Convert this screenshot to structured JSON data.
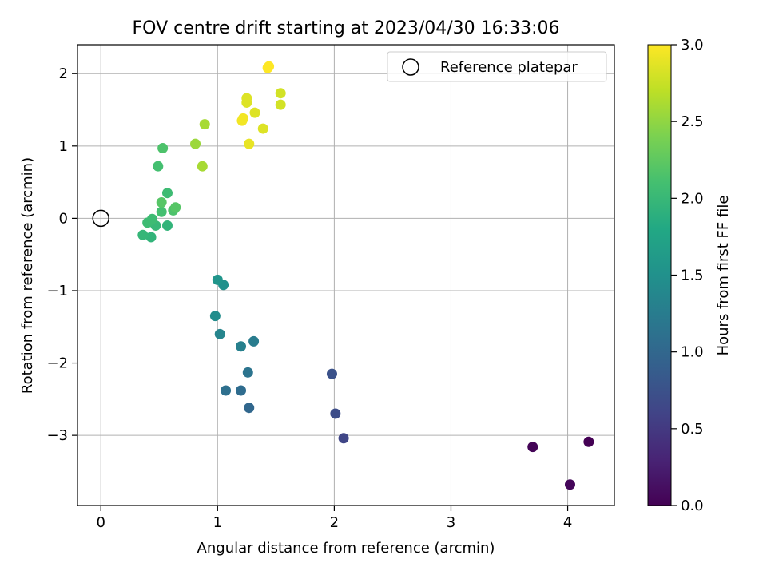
{
  "chart_data": {
    "type": "scatter",
    "title": "FOV centre drift starting at 2023/04/30 16:33:06",
    "xlabel": "Angular distance from reference (arcmin)",
    "ylabel": "Rotation from reference (arcmin)",
    "xlim": [
      -0.2,
      4.4
    ],
    "ylim": [
      -3.97,
      2.4
    ],
    "xticks": [
      0,
      1,
      2,
      3,
      4
    ],
    "yticks": [
      -3,
      -2,
      -1,
      0,
      1,
      2
    ],
    "xtick_labels": [
      "0",
      "1",
      "2",
      "3",
      "4"
    ],
    "ytick_labels": [
      "−3",
      "−2",
      "−1",
      "0",
      "1",
      "2"
    ],
    "grid": true,
    "legend": {
      "placement": "top-right",
      "entries": [
        {
          "label": "Reference platepar",
          "marker": "open-circle"
        }
      ]
    },
    "reference_point": {
      "x": 0,
      "y": 0
    },
    "colorbar": {
      "label": "Hours from first FF file",
      "colormap": "viridis",
      "range": [
        0.0,
        3.0
      ],
      "ticks": [
        0.0,
        0.5,
        1.0,
        1.5,
        2.0,
        2.5,
        3.0
      ],
      "tick_labels": [
        "0.0",
        "0.5",
        "1.0",
        "1.5",
        "2.0",
        "2.5",
        "3.0"
      ]
    },
    "points": [
      {
        "x": 4.18,
        "y": -3.09,
        "c": 0.0
      },
      {
        "x": 3.7,
        "y": -3.16,
        "c": 0.03
      },
      {
        "x": 4.02,
        "y": -3.68,
        "c": 0.05
      },
      {
        "x": 2.08,
        "y": -3.04,
        "c": 0.62
      },
      {
        "x": 2.01,
        "y": -2.7,
        "c": 0.7
      },
      {
        "x": 1.98,
        "y": -2.15,
        "c": 0.75
      },
      {
        "x": 1.27,
        "y": -2.62,
        "c": 1.0
      },
      {
        "x": 1.2,
        "y": -2.38,
        "c": 1.05
      },
      {
        "x": 1.07,
        "y": -2.38,
        "c": 1.1
      },
      {
        "x": 1.26,
        "y": -2.13,
        "c": 1.15
      },
      {
        "x": 1.31,
        "y": -1.7,
        "c": 1.25
      },
      {
        "x": 1.2,
        "y": -1.77,
        "c": 1.3
      },
      {
        "x": 1.02,
        "y": -1.6,
        "c": 1.35
      },
      {
        "x": 0.98,
        "y": -1.35,
        "c": 1.45
      },
      {
        "x": 1.05,
        "y": -0.92,
        "c": 1.5
      },
      {
        "x": 1.0,
        "y": -0.85,
        "c": 1.55
      },
      {
        "x": 0.43,
        "y": -0.26,
        "c": 1.95
      },
      {
        "x": 0.36,
        "y": -0.23,
        "c": 1.98
      },
      {
        "x": 0.57,
        "y": -0.1,
        "c": 1.95
      },
      {
        "x": 0.47,
        "y": -0.1,
        "c": 2.0
      },
      {
        "x": 0.4,
        "y": -0.06,
        "c": 2.05
      },
      {
        "x": 0.44,
        "y": -0.01,
        "c": 2.05
      },
      {
        "x": 0.52,
        "y": 0.09,
        "c": 2.1
      },
      {
        "x": 0.62,
        "y": 0.11,
        "c": 2.15
      },
      {
        "x": 0.64,
        "y": 0.15,
        "c": 2.2
      },
      {
        "x": 0.52,
        "y": 0.22,
        "c": 2.2
      },
      {
        "x": 0.57,
        "y": 0.35,
        "c": 2.05
      },
      {
        "x": 0.49,
        "y": 0.72,
        "c": 2.1
      },
      {
        "x": 0.53,
        "y": 0.97,
        "c": 2.15
      },
      {
        "x": 0.87,
        "y": 0.72,
        "c": 2.6
      },
      {
        "x": 0.81,
        "y": 1.03,
        "c": 2.55
      },
      {
        "x": 0.89,
        "y": 1.3,
        "c": 2.6
      },
      {
        "x": 1.21,
        "y": 1.35,
        "c": 2.95
      },
      {
        "x": 1.22,
        "y": 1.38,
        "c": 2.95
      },
      {
        "x": 1.25,
        "y": 1.6,
        "c": 2.85
      },
      {
        "x": 1.25,
        "y": 1.66,
        "c": 2.85
      },
      {
        "x": 1.27,
        "y": 1.03,
        "c": 2.9
      },
      {
        "x": 1.32,
        "y": 1.46,
        "c": 2.85
      },
      {
        "x": 1.39,
        "y": 1.24,
        "c": 2.85
      },
      {
        "x": 1.43,
        "y": 2.08,
        "c": 3.0
      },
      {
        "x": 1.44,
        "y": 2.1,
        "c": 3.0
      },
      {
        "x": 1.54,
        "y": 1.73,
        "c": 2.8
      },
      {
        "x": 1.54,
        "y": 1.57,
        "c": 2.8
      }
    ]
  }
}
